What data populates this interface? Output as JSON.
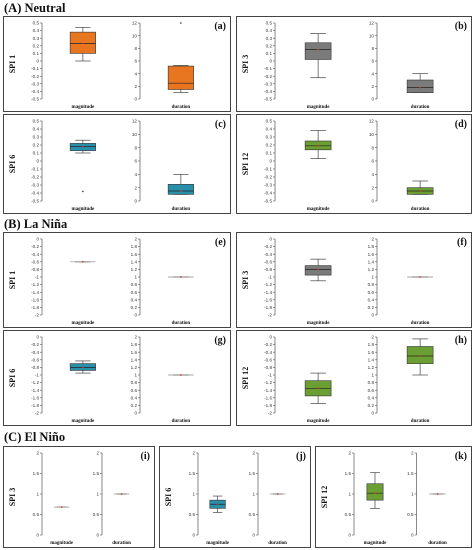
{
  "sections": [
    {
      "id": "A",
      "title": "(A) Neutral"
    },
    {
      "id": "B",
      "title": "(B) La Niña"
    },
    {
      "id": "C",
      "title": "(C) El Niño"
    }
  ],
  "colors": {
    "SPI 1": "#e87620",
    "SPI 3": "#7b7b7b",
    "SPI 6": "#2a8fab",
    "SPI 12": "#6b9e33",
    "median": "#c0392b"
  },
  "chart_data": [
    {
      "id": "a",
      "type": "box",
      "panel_label": "(a)",
      "ylabel": "SPI 1",
      "color_key": "SPI 1",
      "subplots": [
        {
          "xlabel": "magnitude",
          "ylim": [
            -0.5,
            0.5
          ],
          "ticks": [
            0.5,
            0.4,
            0.3,
            0.2,
            0.1,
            0,
            -0.1,
            -0.2,
            -0.3,
            -0.4,
            -0.5
          ],
          "box": {
            "whisker_low": 0.0,
            "q1": 0.1,
            "median": 0.23,
            "q3": 0.38,
            "whisker_high": 0.44
          },
          "outliers": []
        },
        {
          "xlabel": "duration",
          "ylim": [
            0,
            12
          ],
          "ticks": [
            12,
            10,
            8,
            6,
            4,
            2,
            0
          ],
          "box": {
            "whisker_low": 1.0,
            "q1": 1.5,
            "median": 2.5,
            "q3": 5.2,
            "whisker_high": 5.3
          },
          "outliers": [
            12
          ]
        }
      ]
    },
    {
      "id": "b",
      "type": "box",
      "panel_label": "(b)",
      "ylabel": "SPI 3",
      "color_key": "SPI 3",
      "subplots": [
        {
          "xlabel": "magnitude",
          "ylim": [
            -0.5,
            0.5
          ],
          "ticks": [
            0.5,
            0.4,
            0.3,
            0.2,
            0.1,
            0,
            -0.1,
            -0.2,
            -0.3,
            -0.4,
            -0.5
          ],
          "box": {
            "whisker_low": -0.22,
            "q1": 0.02,
            "median": 0.15,
            "q3": 0.24,
            "whisker_high": 0.36
          },
          "outliers": []
        },
        {
          "xlabel": "duration",
          "ylim": [
            0,
            12
          ],
          "ticks": [
            12,
            10,
            8,
            6,
            4,
            2,
            0
          ],
          "box": {
            "whisker_low": 1.0,
            "q1": 1.0,
            "median": 1.8,
            "q3": 3.0,
            "whisker_high": 4.0
          },
          "outliers": []
        }
      ]
    },
    {
      "id": "c",
      "type": "box",
      "panel_label": "(c)",
      "ylabel": "SPI 6",
      "color_key": "SPI 6",
      "subplots": [
        {
          "xlabel": "magnitude",
          "ylim": [
            -0.5,
            0.5
          ],
          "ticks": [
            0.5,
            0.4,
            0.3,
            0.2,
            0.1,
            0,
            -0.1,
            -0.2,
            -0.3,
            -0.4,
            -0.5
          ],
          "box": {
            "whisker_low": 0.1,
            "q1": 0.13,
            "median": 0.18,
            "q3": 0.22,
            "whisker_high": 0.26
          },
          "outliers": [
            -0.38
          ]
        },
        {
          "xlabel": "duration",
          "ylim": [
            0,
            12
          ],
          "ticks": [
            12,
            10,
            8,
            6,
            4,
            2,
            0
          ],
          "box": {
            "whisker_low": 1.0,
            "q1": 1.0,
            "median": 1.5,
            "q3": 2.5,
            "whisker_high": 4.0
          },
          "outliers": []
        }
      ]
    },
    {
      "id": "d",
      "type": "box",
      "panel_label": "(d)",
      "ylabel": "SPI 12",
      "color_key": "SPI 12",
      "subplots": [
        {
          "xlabel": "magnitude",
          "ylim": [
            -0.5,
            0.5
          ],
          "ticks": [
            0.5,
            0.4,
            0.3,
            0.2,
            0.1,
            0,
            -0.1,
            -0.2,
            -0.3,
            -0.4,
            -0.5
          ],
          "box": {
            "whisker_low": 0.03,
            "q1": 0.14,
            "median": 0.19,
            "q3": 0.25,
            "whisker_high": 0.38
          },
          "outliers": []
        },
        {
          "xlabel": "duration",
          "ylim": [
            0,
            12
          ],
          "ticks": [
            12,
            10,
            8,
            6,
            4,
            2,
            0
          ],
          "box": {
            "whisker_low": 1.0,
            "q1": 1.0,
            "median": 1.5,
            "q3": 2.0,
            "whisker_high": 3.0
          },
          "outliers": []
        }
      ]
    },
    {
      "id": "e",
      "type": "box",
      "panel_label": "(e)",
      "ylabel": "SPI 1",
      "color_key": "SPI 1",
      "subplots": [
        {
          "xlabel": "magnitude",
          "ylim": [
            -2,
            0
          ],
          "ticks": [
            0,
            -0.2,
            -0.4,
            -0.6,
            -0.8,
            -1,
            -1.2,
            -1.4,
            -1.6,
            -1.8,
            -2
          ],
          "box": {
            "whisker_low": -0.6,
            "q1": -0.6,
            "median": -0.6,
            "q3": -0.6,
            "whisker_high": -0.6
          },
          "outliers": []
        },
        {
          "xlabel": "duration",
          "ylim": [
            0,
            2
          ],
          "ticks": [
            2,
            1.8,
            1.6,
            1.4,
            1.2,
            1,
            0.8,
            0.6,
            0.4,
            0.2,
            0
          ],
          "box": {
            "whisker_low": 1.0,
            "q1": 1.0,
            "median": 1.0,
            "q3": 1.0,
            "whisker_high": 1.0
          },
          "outliers": []
        }
      ]
    },
    {
      "id": "f",
      "type": "box",
      "panel_label": "(f)",
      "ylabel": "SPI 3",
      "color_key": "SPI 3",
      "subplots": [
        {
          "xlabel": "magnitude",
          "ylim": [
            -2,
            0
          ],
          "ticks": [
            0,
            -0.2,
            -0.4,
            -0.6,
            -0.8,
            -1,
            -1.2,
            -1.4,
            -1.6,
            -1.8,
            -2
          ],
          "box": {
            "whisker_low": -1.1,
            "q1": -0.95,
            "median": -0.8,
            "q3": -0.7,
            "whisker_high": -0.53
          },
          "outliers": []
        },
        {
          "xlabel": "duration",
          "ylim": [
            0,
            2
          ],
          "ticks": [
            2,
            1.8,
            1.6,
            1.4,
            1.2,
            1,
            0.8,
            0.6,
            0.4,
            0.2,
            0
          ],
          "box": {
            "whisker_low": 1.0,
            "q1": 1.0,
            "median": 1.0,
            "q3": 1.0,
            "whisker_high": 1.0
          },
          "outliers": []
        }
      ]
    },
    {
      "id": "g",
      "type": "box",
      "panel_label": "(g)",
      "ylabel": "SPI 6",
      "color_key": "SPI 6",
      "subplots": [
        {
          "xlabel": "magnitude",
          "ylim": [
            -2,
            0
          ],
          "ticks": [
            0,
            -0.2,
            -0.4,
            -0.6,
            -0.8,
            -1,
            -1.2,
            -1.4,
            -1.6,
            -1.8,
            -2
          ],
          "box": {
            "whisker_low": -0.95,
            "q1": -0.88,
            "median": -0.8,
            "q3": -0.7,
            "whisker_high": -0.63
          },
          "outliers": []
        },
        {
          "xlabel": "duration",
          "ylim": [
            0,
            2
          ],
          "ticks": [
            2,
            1.8,
            1.6,
            1.4,
            1.2,
            1,
            0.8,
            0.6,
            0.4,
            0.2,
            0
          ],
          "box": {
            "whisker_low": 1.0,
            "q1": 1.0,
            "median": 1.0,
            "q3": 1.0,
            "whisker_high": 1.0
          },
          "outliers": []
        }
      ]
    },
    {
      "id": "h",
      "type": "box",
      "panel_label": "(h)",
      "ylabel": "SPI 12",
      "color_key": "SPI 12",
      "subplots": [
        {
          "xlabel": "magnitude",
          "ylim": [
            -2,
            0
          ],
          "ticks": [
            0,
            -0.2,
            -0.4,
            -0.6,
            -0.8,
            -1,
            -1.2,
            -1.4,
            -1.6,
            -1.8,
            -2
          ],
          "box": {
            "whisker_low": -1.75,
            "q1": -1.55,
            "median": -1.35,
            "q3": -1.15,
            "whisker_high": -0.95
          },
          "outliers": []
        },
        {
          "xlabel": "duration",
          "ylim": [
            0,
            2
          ],
          "ticks": [
            2,
            1.8,
            1.6,
            1.4,
            1.2,
            1,
            0.8,
            0.6,
            0.4,
            0.2,
            0
          ],
          "box": {
            "whisker_low": 1.0,
            "q1": 1.3,
            "median": 1.5,
            "q3": 1.75,
            "whisker_high": 1.95
          },
          "outliers": []
        }
      ]
    },
    {
      "id": "i",
      "type": "box",
      "panel_label": "(i)",
      "ylabel": "SPI 3",
      "color_key": "SPI 3",
      "subplots": [
        {
          "xlabel": "magnitude",
          "ylim": [
            0,
            2
          ],
          "ticks": [
            2,
            1.5,
            1,
            0.5,
            0
          ],
          "box": {
            "whisker_low": 0.68,
            "q1": 0.68,
            "median": 0.68,
            "q3": 0.68,
            "whisker_high": 0.68
          },
          "outliers": []
        },
        {
          "xlabel": "duration",
          "ylim": [
            0,
            2
          ],
          "ticks": [
            2,
            1.5,
            1,
            0.5,
            0
          ],
          "box": {
            "whisker_low": 1.0,
            "q1": 1.0,
            "median": 1.0,
            "q3": 1.0,
            "whisker_high": 1.0
          },
          "outliers": []
        }
      ]
    },
    {
      "id": "j",
      "type": "box",
      "panel_label": "(j)",
      "ylabel": "SPI 6",
      "color_key": "SPI 6",
      "subplots": [
        {
          "xlabel": "magnitude",
          "ylim": [
            0,
            2
          ],
          "ticks": [
            2,
            1.5,
            1,
            0.5,
            0
          ],
          "box": {
            "whisker_low": 0.55,
            "q1": 0.65,
            "median": 0.75,
            "q3": 0.85,
            "whisker_high": 0.95
          },
          "outliers": []
        },
        {
          "xlabel": "duration",
          "ylim": [
            0,
            2
          ],
          "ticks": [
            2,
            1.5,
            1,
            0.5,
            0
          ],
          "box": {
            "whisker_low": 1.0,
            "q1": 1.0,
            "median": 1.0,
            "q3": 1.0,
            "whisker_high": 1.0
          },
          "outliers": []
        }
      ]
    },
    {
      "id": "k",
      "type": "box",
      "panel_label": "(k)",
      "ylabel": "SPI 12",
      "color_key": "SPI 12",
      "subplots": [
        {
          "xlabel": "magnitude",
          "ylim": [
            0,
            2
          ],
          "ticks": [
            2,
            1.5,
            1,
            0.5,
            0
          ],
          "box": {
            "whisker_low": 0.65,
            "q1": 0.85,
            "median": 1.02,
            "q3": 1.25,
            "whisker_high": 1.52
          },
          "outliers": []
        },
        {
          "xlabel": "duration",
          "ylim": [
            0,
            2
          ],
          "ticks": [
            2,
            1.5,
            1,
            0.5,
            0
          ],
          "box": {
            "whisker_low": 1.0,
            "q1": 1.0,
            "median": 1.0,
            "q3": 1.0,
            "whisker_high": 1.0
          },
          "outliers": []
        }
      ]
    }
  ]
}
